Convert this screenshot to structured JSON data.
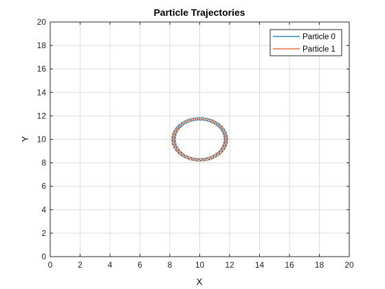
{
  "chart_data": {
    "type": "line",
    "title": "Particle Trajectories",
    "xlabel": "X",
    "ylabel": "Y",
    "xlim": [
      0,
      20
    ],
    "ylim": [
      0,
      20
    ],
    "xticks": [
      0,
      2,
      4,
      6,
      8,
      10,
      12,
      14,
      16,
      18,
      20
    ],
    "yticks": [
      0,
      2,
      4,
      6,
      8,
      10,
      12,
      14,
      16,
      18,
      20
    ],
    "grid": true,
    "legend_position": "top-right",
    "series": [
      {
        "name": "Particle 0",
        "color": "#0072bd",
        "center": [
          10,
          10
        ],
        "radius_x": 1.75,
        "radius_y": 1.75,
        "wobble_amplitude": 0.12,
        "wobble_cycles": 40,
        "phase": 0
      },
      {
        "name": "Particle 1",
        "color": "#d95319",
        "center": [
          10,
          10
        ],
        "radius_x": 1.75,
        "radius_y": 1.75,
        "wobble_amplitude": 0.12,
        "wobble_cycles": 40,
        "phase": 3.14159
      }
    ]
  }
}
